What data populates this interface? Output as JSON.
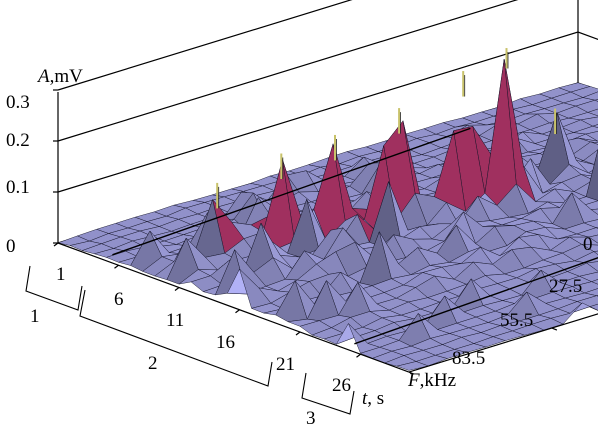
{
  "chart_data": {
    "type": "surface3d",
    "z_axis": {
      "title_var": "A",
      "title_unit": ",mV",
      "ticks": [
        "0",
        "0.1",
        "0.2",
        "0.3"
      ],
      "range": [
        0,
        0.3
      ]
    },
    "t_axis": {
      "title_var": "t",
      "title_unit": ", s",
      "ticks": [
        "1",
        "6",
        "11",
        "16",
        "21",
        "26"
      ],
      "range": [
        1,
        30
      ]
    },
    "f_axis": {
      "title_var": "F",
      "title_unit": ",kHz",
      "ticks": [
        "0",
        "27.5",
        "55.5",
        "83.5"
      ],
      "range": [
        0,
        100
      ]
    },
    "stages": [
      {
        "label": "1",
        "t_range": [
          1,
          5
        ]
      },
      {
        "label": "2",
        "t_range": [
          5,
          25
        ]
      },
      {
        "label": "3",
        "t_range": [
          25,
          30
        ]
      }
    ],
    "colors": {
      "surface": "#9a9ad6",
      "peak": "#a0305f",
      "spike": "#c8c26a",
      "mesh": "#141428"
    },
    "peaks": [
      {
        "t": 9,
        "f": 12,
        "a": 0.12
      },
      {
        "t": 10,
        "f": 22,
        "a": 0.155
      },
      {
        "t": 11,
        "f": 30,
        "a": 0.175
      },
      {
        "t": 12,
        "f": 40,
        "a": 0.205
      },
      {
        "t": 13,
        "f": 50,
        "a": 0.255
      },
      {
        "t": 14,
        "f": 56,
        "a": 0.3
      },
      {
        "t": 12,
        "f": 70,
        "a": 0.11
      },
      {
        "t": 16,
        "f": 72,
        "a": 0.21
      },
      {
        "t": 17,
        "f": 82,
        "a": 0.205
      }
    ]
  }
}
